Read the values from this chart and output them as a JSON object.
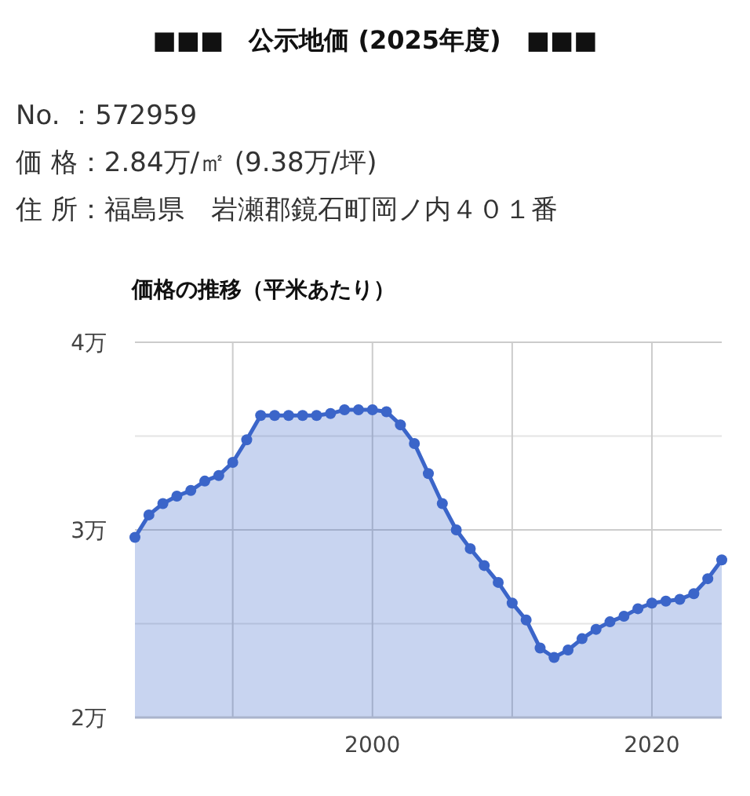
{
  "chart_data": {
    "type": "area",
    "title": "■■■　公示地価 (2025年度)　■■■",
    "subtitle": "価格の推移（平米あたり）",
    "annotations": [
      "No. ：572959",
      "価 格：2.84万/㎡ (9.38万/坪)",
      "住 所：福島県　岩瀬郡鏡石町岡ノ内４０１番"
    ],
    "x": [
      1983,
      1984,
      1985,
      1986,
      1987,
      1988,
      1989,
      1990,
      1991,
      1992,
      1993,
      1994,
      1995,
      1996,
      1997,
      1998,
      1999,
      2000,
      2001,
      2002,
      2003,
      2004,
      2005,
      2006,
      2007,
      2008,
      2009,
      2010,
      2011,
      2012,
      2013,
      2014,
      2015,
      2016,
      2017,
      2018,
      2019,
      2020,
      2021,
      2022,
      2023,
      2024,
      2025
    ],
    "series": [
      {
        "color": "#3b65c9",
        "values": [
          2.96,
          3.08,
          3.14,
          3.18,
          3.21,
          3.26,
          3.29,
          3.36,
          3.48,
          3.61,
          3.61,
          3.61,
          3.61,
          3.61,
          3.62,
          3.64,
          3.64,
          3.64,
          3.63,
          3.56,
          3.46,
          3.3,
          3.14,
          3.0,
          2.9,
          2.81,
          2.72,
          2.61,
          2.52,
          2.37,
          2.32,
          2.36,
          2.42,
          2.47,
          2.51,
          2.54,
          2.58,
          2.61,
          2.62,
          2.63,
          2.66,
          2.74,
          2.84
        ]
      }
    ],
    "xlim": [
      1983,
      2025
    ],
    "xticks": [
      {
        "value": 1990,
        "label": null
      },
      2000,
      {
        "value": 2010,
        "label": null
      },
      2020
    ],
    "ylim": [
      2,
      4
    ],
    "yticks": [
      {
        "value": 2,
        "label": "2万"
      },
      {
        "value": 2.5,
        "label": null
      },
      {
        "value": 3,
        "label": "3万"
      },
      {
        "value": 3.5,
        "label": null
      },
      {
        "value": 4,
        "label": "4万"
      }
    ],
    "grid": true,
    "marker": "circle",
    "line_style": "solid"
  }
}
